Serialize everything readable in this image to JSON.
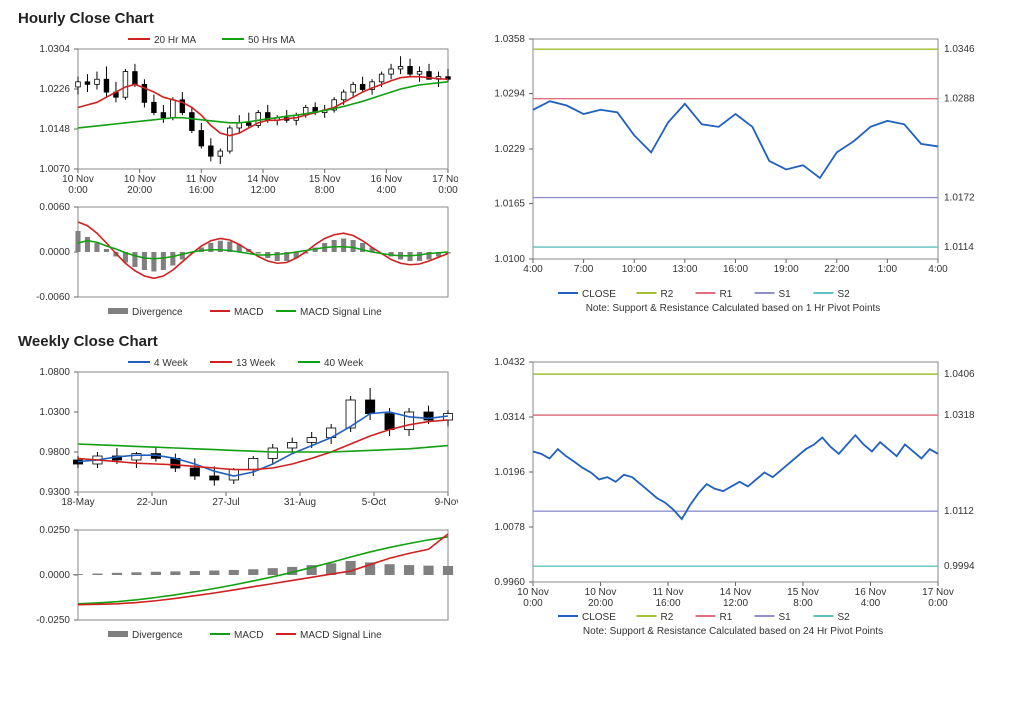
{
  "hourly": {
    "title": "Hourly Close Chart",
    "price": {
      "ylim": [
        1.007,
        1.0304
      ],
      "yticks": [
        1.007,
        1.0148,
        1.0226,
        1.0304
      ],
      "xticks": [
        "10 Nov 0:00",
        "10 Nov 20:00",
        "11 Nov 16:00",
        "14 Nov 12:00",
        "15 Nov 8:00",
        "16 Nov 4:00",
        "17 Nov 0:00"
      ],
      "candles": [
        [
          1.023,
          1.025,
          1.0215,
          1.024
        ],
        [
          1.024,
          1.0255,
          1.022,
          1.0235
        ],
        [
          1.0235,
          1.026,
          1.0225,
          1.0245
        ],
        [
          1.0245,
          1.027,
          1.021,
          1.022
        ],
        [
          1.022,
          1.024,
          1.02,
          1.021
        ],
        [
          1.021,
          1.0265,
          1.0205,
          1.026
        ],
        [
          1.026,
          1.0275,
          1.023,
          1.0235
        ],
        [
          1.0235,
          1.0245,
          1.019,
          1.02
        ],
        [
          1.02,
          1.0215,
          1.0175,
          1.018
        ],
        [
          1.018,
          1.0195,
          1.016,
          1.017
        ],
        [
          1.017,
          1.021,
          1.0165,
          1.0205
        ],
        [
          1.0205,
          1.022,
          1.0175,
          1.018
        ],
        [
          1.018,
          1.019,
          1.014,
          1.0145
        ],
        [
          1.0145,
          1.016,
          1.011,
          1.0115
        ],
        [
          1.0115,
          1.013,
          1.0085,
          1.0095
        ],
        [
          1.0095,
          1.011,
          1.008,
          1.0105
        ],
        [
          1.0105,
          1.0155,
          1.01,
          1.015
        ],
        [
          1.015,
          1.0175,
          1.014,
          1.016
        ],
        [
          1.016,
          1.018,
          1.015,
          1.0155
        ],
        [
          1.0155,
          1.0185,
          1.015,
          1.018
        ],
        [
          1.018,
          1.0195,
          1.016,
          1.0165
        ],
        [
          1.0165,
          1.0175,
          1.0155,
          1.017
        ],
        [
          1.017,
          1.0185,
          1.016,
          1.0165
        ],
        [
          1.0165,
          1.018,
          1.0155,
          1.0175
        ],
        [
          1.0175,
          1.0195,
          1.017,
          1.019
        ],
        [
          1.019,
          1.02,
          1.0175,
          1.018
        ],
        [
          1.018,
          1.0195,
          1.017,
          1.0185
        ],
        [
          1.0185,
          1.021,
          1.018,
          1.0205
        ],
        [
          1.0205,
          1.0225,
          1.0195,
          1.022
        ],
        [
          1.022,
          1.024,
          1.021,
          1.0235
        ],
        [
          1.0235,
          1.025,
          1.022,
          1.0225
        ],
        [
          1.0225,
          1.0245,
          1.0215,
          1.024
        ],
        [
          1.024,
          1.026,
          1.023,
          1.0255
        ],
        [
          1.0255,
          1.0275,
          1.0245,
          1.0265
        ],
        [
          1.0265,
          1.029,
          1.0255,
          1.027
        ],
        [
          1.027,
          1.0285,
          1.025,
          1.0255
        ],
        [
          1.0255,
          1.027,
          1.024,
          1.026
        ],
        [
          1.026,
          1.0275,
          1.025,
          1.0245
        ],
        [
          1.0245,
          1.026,
          1.023,
          1.025
        ],
        [
          1.025,
          1.0265,
          1.024,
          1.0245
        ]
      ],
      "ma20": [
        1.019,
        1.0195,
        1.02,
        1.021,
        1.022,
        1.023,
        1.0235,
        1.0228,
        1.022,
        1.021,
        1.0205,
        1.02,
        1.019,
        1.0175,
        1.0155,
        1.014,
        1.0135,
        1.014,
        1.015,
        1.016,
        1.0165,
        1.0165,
        1.0168,
        1.017,
        1.0175,
        1.018,
        1.0185,
        1.019,
        1.02,
        1.021,
        1.022,
        1.0228,
        1.0235,
        1.0242,
        1.0248,
        1.025,
        1.025,
        1.0248,
        1.0246,
        1.0245
      ],
      "ma50": [
        1.015,
        1.0152,
        1.0154,
        1.0156,
        1.0158,
        1.016,
        1.0162,
        1.0164,
        1.0166,
        1.0168,
        1.017,
        1.017,
        1.0168,
        1.0166,
        1.0164,
        1.0162,
        1.016,
        1.016,
        1.0162,
        1.0165,
        1.0168,
        1.017,
        1.0173,
        1.0175,
        1.0178,
        1.0181,
        1.0184,
        1.0188,
        1.0192,
        1.0197,
        1.0202,
        1.0208,
        1.0214,
        1.022,
        1.0226,
        1.023,
        1.0234,
        1.0236,
        1.0238,
        1.024
      ],
      "ma20_color": "#d02020",
      "ma50_color": "#10a010",
      "legend": [
        "20 Hr MA",
        "50 Hrs MA"
      ]
    },
    "macd": {
      "ylim": [
        -0.006,
        0.006
      ],
      "yticks": [
        -0.006,
        0.0,
        0.006
      ],
      "divergence": [
        0.0028,
        0.002,
        0.0012,
        0.0004,
        -0.0006,
        -0.0014,
        -0.002,
        -0.0024,
        -0.0026,
        -0.0024,
        -0.0018,
        -0.001,
        -0.0002,
        0.0006,
        0.0012,
        0.0015,
        0.0014,
        0.001,
        0.0004,
        -0.0002,
        -0.0008,
        -0.0012,
        -0.0012,
        -0.0008,
        -0.0002,
        0.0006,
        0.0012,
        0.0016,
        0.0018,
        0.0016,
        0.0012,
        0.0006,
        0.0,
        -0.0006,
        -0.001,
        -0.0012,
        -0.0012,
        -0.001,
        -0.0006,
        -0.0002
      ],
      "macd": [
        0.004,
        0.0035,
        0.0025,
        0.0012,
        -0.0002,
        -0.0015,
        -0.0025,
        -0.0032,
        -0.0035,
        -0.0032,
        -0.0024,
        -0.0013,
        -0.0002,
        0.0008,
        0.0015,
        0.0018,
        0.0016,
        0.001,
        0.0002,
        -0.0006,
        -0.0012,
        -0.0015,
        -0.0014,
        -0.0008,
        0.0,
        0.001,
        0.0018,
        0.0023,
        0.0025,
        0.0022,
        0.0015,
        0.0006,
        -0.0002,
        -0.001,
        -0.0015,
        -0.0017,
        -0.0016,
        -0.0012,
        -0.0007,
        -0.0002
      ],
      "signal": [
        0.0012,
        0.0015,
        0.0013,
        0.0008,
        0.0004,
        -0.0001,
        -0.0005,
        -0.0008,
        -0.0009,
        -0.0008,
        -0.0006,
        -0.0003,
        0.0,
        0.0002,
        0.0003,
        0.0003,
        0.0002,
        0.0,
        -0.0002,
        -0.0004,
        -0.0004,
        -0.0003,
        -0.0002,
        0.0,
        0.0002,
        0.0004,
        0.0006,
        0.0007,
        0.0007,
        0.0006,
        0.0003,
        0.0,
        -0.0002,
        -0.0004,
        -0.0005,
        -0.0005,
        -0.0004,
        -0.0002,
        -0.0001,
        0.0
      ],
      "div_color": "#808080",
      "macd_color": "#d02020",
      "signal_color": "#10a010",
      "legend": [
        "Divergence",
        "MACD",
        "MACD Signal Line"
      ]
    },
    "sr": {
      "ylim": [
        1.01,
        1.0358
      ],
      "yticks": [
        1.01,
        1.0165,
        1.0229,
        1.0294,
        1.0358
      ],
      "xticks": [
        "4:00",
        "7:00",
        "10:00",
        "13:00",
        "16:00",
        "19:00",
        "22:00",
        "1:00",
        "4:00"
      ],
      "close": [
        1.0275,
        1.0285,
        1.028,
        1.027,
        1.0275,
        1.0272,
        1.0245,
        1.0225,
        1.026,
        1.0282,
        1.0258,
        1.0255,
        1.027,
        1.0255,
        1.0215,
        1.0205,
        1.021,
        1.0195,
        1.0225,
        1.0238,
        1.0255,
        1.0262,
        1.0258,
        1.0235,
        1.0232
      ],
      "close_color": "#2060c0",
      "levels": {
        "R2": 1.0346,
        "R1": 1.0288,
        "S1": 1.0172,
        "S2": 1.0114
      },
      "level_colors": {
        "R2": "#a0c030",
        "R1": "#e07080",
        "S1": "#9090d0",
        "S2": "#60c0c0"
      },
      "legend": [
        "CLOSE",
        "R2",
        "R1",
        "S1",
        "S2"
      ],
      "note": "Note: Support & Resistance Calculated based on 1 Hr Pivot Points"
    }
  },
  "weekly": {
    "title": "Weekly Close Chart",
    "price": {
      "ylim": [
        0.93,
        1.08
      ],
      "yticks": [
        0.93,
        0.98,
        1.03,
        1.08
      ],
      "xticks": [
        "18-May",
        "22-Jun",
        "27-Jul",
        "31-Aug",
        "5-Oct",
        "9-Nov"
      ],
      "candles": [
        [
          0.97,
          0.975,
          0.96,
          0.965
        ],
        [
          0.965,
          0.98,
          0.96,
          0.975
        ],
        [
          0.975,
          0.985,
          0.965,
          0.97
        ],
        [
          0.97,
          0.98,
          0.96,
          0.978
        ],
        [
          0.978,
          0.985,
          0.968,
          0.972
        ],
        [
          0.972,
          0.978,
          0.955,
          0.96
        ],
        [
          0.96,
          0.972,
          0.945,
          0.95
        ],
        [
          0.95,
          0.962,
          0.938,
          0.945
        ],
        [
          0.945,
          0.96,
          0.94,
          0.958
        ],
        [
          0.958,
          0.975,
          0.95,
          0.972
        ],
        [
          0.972,
          0.99,
          0.965,
          0.985
        ],
        [
          0.985,
          0.998,
          0.978,
          0.992
        ],
        [
          0.992,
          1.005,
          0.985,
          0.998
        ],
        [
          0.998,
          1.015,
          0.99,
          1.01
        ],
        [
          1.01,
          1.05,
          1.005,
          1.045
        ],
        [
          1.045,
          1.06,
          1.02,
          1.028
        ],
        [
          1.028,
          1.035,
          1.0,
          1.008
        ],
        [
          1.008,
          1.035,
          1.0,
          1.03
        ],
        [
          1.03,
          1.038,
          1.015,
          1.02
        ],
        [
          1.02,
          1.032,
          1.012,
          1.028
        ]
      ],
      "ma4": [
        0.968,
        0.97,
        0.974,
        0.976,
        0.976,
        0.972,
        0.965,
        0.956,
        0.95,
        0.955,
        0.965,
        0.978,
        0.988,
        0.998,
        1.012,
        1.028,
        1.03,
        1.024,
        1.022,
        1.025
      ],
      "ma13": [
        0.972,
        0.97,
        0.968,
        0.966,
        0.965,
        0.964,
        0.962,
        0.96,
        0.958,
        0.958,
        0.96,
        0.965,
        0.972,
        0.98,
        0.99,
        1.0,
        1.008,
        1.014,
        1.018,
        1.02
      ],
      "ma40": [
        0.99,
        0.989,
        0.988,
        0.987,
        0.986,
        0.985,
        0.984,
        0.983,
        0.982,
        0.981,
        0.98,
        0.98,
        0.98,
        0.98,
        0.981,
        0.982,
        0.983,
        0.984,
        0.986,
        0.988
      ],
      "ma4_color": "#2060c0",
      "ma13_color": "#d02020",
      "ma40_color": "#10a010",
      "legend": [
        "4 Week",
        "13 Week",
        "40 Week"
      ]
    },
    "macd": {
      "ylim": [
        -0.025,
        0.025
      ],
      "yticks": [
        -0.025,
        0.0,
        0.025
      ],
      "divergence": [
        0.0005,
        0.0008,
        0.0012,
        0.0015,
        0.0018,
        0.002,
        0.0022,
        0.0025,
        0.0028,
        0.0032,
        0.0038,
        0.0045,
        0.0055,
        0.0065,
        0.0078,
        0.007,
        0.006,
        0.0055,
        0.0052,
        0.005
      ],
      "macd": [
        -0.016,
        -0.0155,
        -0.0148,
        -0.0138,
        -0.0125,
        -0.011,
        -0.0093,
        -0.0075,
        -0.0055,
        -0.0033,
        -0.001,
        0.0015,
        0.0042,
        0.007,
        0.01,
        0.0128,
        0.0153,
        0.0175,
        0.0195,
        0.0212
      ],
      "signal": [
        -0.0165,
        -0.0163,
        -0.016,
        -0.0153,
        -0.0143,
        -0.013,
        -0.0115,
        -0.01,
        -0.0083,
        -0.0065,
        -0.0048,
        -0.003,
        -0.0013,
        0.0005,
        0.0022,
        0.0058,
        0.0093,
        0.012,
        0.0143,
        0.0228
      ],
      "div_color": "#808080",
      "macd_color": "#10a010",
      "signal_color": "#d02020",
      "legend": [
        "Divergence",
        "MACD",
        "MACD Signal Line"
      ]
    },
    "sr": {
      "ylim": [
        0.996,
        1.0432
      ],
      "yticks": [
        0.996,
        1.0078,
        1.0196,
        1.0314,
        1.0432
      ],
      "xticks": [
        "10 Nov 0:00",
        "10 Nov 20:00",
        "11 Nov 16:00",
        "14 Nov 12:00",
        "15 Nov 8:00",
        "16 Nov 4:00",
        "17 Nov 0:00"
      ],
      "close": [
        1.024,
        1.0235,
        1.0225,
        1.0245,
        1.023,
        1.0218,
        1.0205,
        1.0195,
        1.018,
        1.0185,
        1.0175,
        1.019,
        1.0185,
        1.017,
        1.0155,
        1.014,
        1.013,
        1.0115,
        1.0095,
        1.0125,
        1.015,
        1.017,
        1.016,
        1.0155,
        1.0165,
        1.0175,
        1.0165,
        1.018,
        1.0195,
        1.0185,
        1.02,
        1.0215,
        1.023,
        1.0245,
        1.0255,
        1.027,
        1.025,
        1.0235,
        1.0255,
        1.0275,
        1.0255,
        1.024,
        1.026,
        1.0245,
        1.023,
        1.0255,
        1.024,
        1.0225,
        1.0245,
        1.0235
      ],
      "close_color": "#2060c0",
      "levels": {
        "R2": 1.0406,
        "R1": 1.0318,
        "S1": 1.0112,
        "S2": 0.9994
      },
      "level_colors": {
        "R2": "#a0c030",
        "R1": "#e07080",
        "S1": "#9090d0",
        "S2": "#60c0c0"
      },
      "legend": [
        "CLOSE",
        "R2",
        "R1",
        "S1",
        "S2"
      ],
      "note": "Note: Support & Resistance Calculated based on 24 Hr Pivot Points"
    }
  },
  "style": {
    "bg": "#ffffff",
    "axis_color": "#666666",
    "candle_up": "#ffffff",
    "candle_border": "#000000",
    "text_color": "#333333"
  }
}
